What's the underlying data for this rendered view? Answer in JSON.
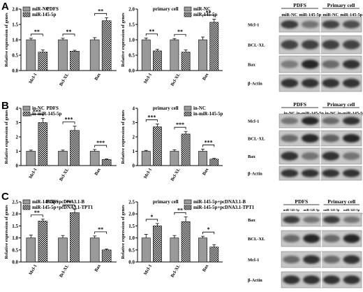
{
  "figure": {
    "rows": [
      {
        "panel_label": "A",
        "blot": {
          "groups": [
            "PDFS",
            "Primary cell"
          ],
          "lanes": [
            "miR-NC",
            "miR-145-5p",
            "miR-NC",
            "miR-145-5p"
          ],
          "proteins": [
            "Mcl-1",
            "BCL-XL",
            "Bax",
            "β-Actin"
          ],
          "intensity": [
            [
              0.75,
              0.45,
              0.7,
              0.65
            ],
            [
              0.7,
              0.72,
              0.72,
              0.7
            ],
            [
              0.4,
              0.85,
              0.5,
              0.8
            ],
            [
              0.8,
              0.8,
              0.8,
              0.8
            ]
          ]
        }
      },
      {
        "panel_label": "B",
        "blot": {
          "groups": [
            "PDFS",
            "Primary cell"
          ],
          "lanes": [
            "in-NC",
            "in-miR-145-5p",
            "in-NC",
            "in-miR-145-5p"
          ],
          "proteins": [
            "Mcl-1",
            "BCL-XL",
            "Bax",
            "β-Actin"
          ],
          "intensity": [
            [
              0.45,
              0.85,
              0.5,
              0.8
            ],
            [
              0.5,
              0.85,
              0.55,
              0.85
            ],
            [
              0.8,
              0.45,
              0.8,
              0.45
            ],
            [
              0.8,
              0.8,
              0.8,
              0.8
            ]
          ]
        }
      },
      {
        "panel_label": "C",
        "blot": {
          "groups": [
            "PDFS",
            "Primary cell"
          ],
          "lanes": [
            "miR-145-5p\n+pcDNA3.1-B",
            "miR-145-5p\n+pcDNA3.1-TPT1",
            "miR-145-5p\n+pcDNA3.1-B",
            "miR-145-5p\n+pcDNA3.1-TPT1"
          ],
          "proteins": [
            "Bax",
            "BCL-XL",
            "Mcl-1",
            "β-Actin"
          ],
          "intensity": [
            [
              0.75,
              0.45,
              0.75,
              0.45
            ],
            [
              0.5,
              0.85,
              0.5,
              0.85
            ],
            [
              0.5,
              0.8,
              0.5,
              0.8
            ],
            [
              0.8,
              0.8,
              0.8,
              0.8
            ]
          ]
        }
      }
    ],
    "colors": {
      "bar_a": "#9a9a9a",
      "bar_b_pattern": "checkerboard",
      "ink": "#000000"
    }
  },
  "chart_data": [
    {
      "type": "bar",
      "panel": "A",
      "title": "PDFS",
      "ylabel": "Relative expression of genes",
      "ylim": [
        0,
        2
      ],
      "yticks": [
        "0.0",
        "0.5",
        "1.0",
        "1.5",
        "2.0"
      ],
      "categories": [
        "Mcl-1",
        "Bcl-XL",
        "Bax"
      ],
      "series": [
        {
          "name": "miR-NC",
          "values": [
            1.0,
            1.0,
            1.0
          ],
          "errors": [
            0.05,
            0.05,
            0.07
          ]
        },
        {
          "name": "miR-145-5p",
          "values": [
            0.6,
            0.63,
            1.62
          ],
          "errors": [
            0.07,
            0.03,
            0.1
          ]
        }
      ],
      "significance": [
        "**",
        "**",
        "**"
      ]
    },
    {
      "type": "bar",
      "panel": "A",
      "title": "primary cell",
      "ylabel": "Relative expression of genes",
      "ylim": [
        0,
        2
      ],
      "yticks": [
        "0.0",
        "0.5",
        "1.0",
        "1.5",
        "2.0"
      ],
      "categories": [
        "Mcl-1",
        "Bcl-XL",
        "Bax"
      ],
      "series": [
        {
          "name": "miR-NC",
          "values": [
            1.0,
            1.0,
            1.0
          ],
          "errors": [
            0.06,
            0.04,
            0.09
          ]
        },
        {
          "name": "miR-145-5p",
          "values": [
            0.64,
            0.6,
            1.57
          ],
          "errors": [
            0.05,
            0.07,
            0.1
          ]
        }
      ],
      "significance": [
        "**",
        "**",
        "**"
      ]
    },
    {
      "type": "bar",
      "panel": "B",
      "title": "PDFS",
      "ylabel": "Relative expression of genes",
      "ylim": [
        0,
        4
      ],
      "yticks": [
        "0",
        "1",
        "2",
        "3",
        "4"
      ],
      "categories": [
        "Mcl-1",
        "Bcl-XL",
        "Bax"
      ],
      "series": [
        {
          "name": "in-NC",
          "values": [
            1.0,
            1.0,
            1.0
          ],
          "errors": [
            0.08,
            0.08,
            0.12
          ]
        },
        {
          "name": "in-miR-145-5p",
          "values": [
            3.0,
            2.45,
            0.42
          ],
          "errors": [
            0.3,
            0.3,
            0.05
          ]
        }
      ],
      "significance": [
        "***",
        "***",
        "***"
      ]
    },
    {
      "type": "bar",
      "panel": "B",
      "title": "primary cell",
      "ylabel": "Relative expression of genes",
      "ylim": [
        0,
        4
      ],
      "yticks": [
        "0",
        "1",
        "2",
        "3",
        "4"
      ],
      "categories": [
        "Mcl-1",
        "Bcl-XL",
        "Bax"
      ],
      "series": [
        {
          "name": "in-NC",
          "values": [
            1.0,
            1.0,
            1.0
          ],
          "errors": [
            0.06,
            0.1,
            0.15
          ]
        },
        {
          "name": "in-miR-145-5p",
          "values": [
            2.7,
            2.2,
            0.45
          ],
          "errors": [
            0.2,
            0.18,
            0.05
          ]
        }
      ],
      "significance": [
        "***",
        "***",
        "***"
      ]
    },
    {
      "type": "bar",
      "panel": "C",
      "title": "PDFS",
      "ylabel": "Relative expression of genes",
      "ylim": [
        0,
        2.5
      ],
      "yticks": [
        "0.0",
        "0.5",
        "1.0",
        "1.5",
        "2.0",
        "2.5"
      ],
      "categories": [
        "Mcl-1",
        "Bcl-XL",
        "Bax"
      ],
      "series": [
        {
          "name": "miR-145-5p+pcDNA3.1-B",
          "values": [
            1.0,
            1.0,
            1.0
          ],
          "errors": [
            0.12,
            0.1,
            0.08
          ]
        },
        {
          "name": "miR-145-5p+pcDNA3.1-TPT1",
          "values": [
            1.7,
            2.05,
            0.5
          ],
          "errors": [
            0.08,
            0.15,
            0.04
          ]
        }
      ],
      "significance": [
        "**",
        "**",
        "**"
      ]
    },
    {
      "type": "bar",
      "panel": "C",
      "title": "primary cell",
      "ylabel": "Relative expression of genes",
      "ylim": [
        0,
        2.5
      ],
      "yticks": [
        "0.0",
        "0.5",
        "1.0",
        "1.5",
        "2.0",
        "2.5"
      ],
      "categories": [
        "Mcl-1",
        "Bcl-XL",
        "Bax"
      ],
      "series": [
        {
          "name": "miR-145-5p+pcDNA3.1-B",
          "values": [
            1.0,
            1.0,
            1.0
          ],
          "errors": [
            0.15,
            0.1,
            0.07
          ]
        },
        {
          "name": "miR-145-5p+pcDNA3.1-TPT1",
          "values": [
            1.5,
            1.68,
            0.62
          ],
          "errors": [
            0.1,
            0.2,
            0.1
          ]
        }
      ],
      "significance": [
        "*",
        "**",
        "*"
      ]
    }
  ]
}
